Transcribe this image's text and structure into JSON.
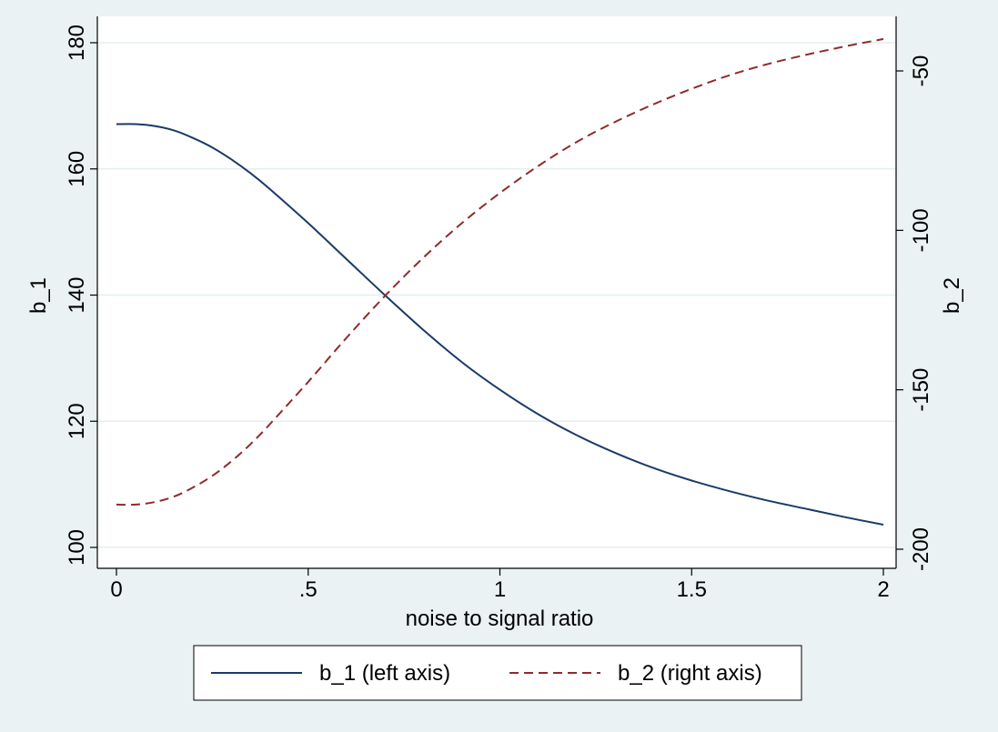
{
  "chart_data": {
    "type": "line",
    "xlabel": "noise to signal ratio",
    "ylabel_left": "b_1",
    "ylabel_right": "b_2",
    "x_ticks": [
      0,
      0.5,
      1,
      1.5,
      2
    ],
    "x_tick_labels": [
      "0",
      ".5",
      "1",
      "1.5",
      "2"
    ],
    "xlim": [
      0,
      2
    ],
    "y_left_ticks": [
      100,
      120,
      140,
      160,
      180
    ],
    "y_left_tick_labels": [
      "100",
      "120",
      "140",
      "160",
      "180"
    ],
    "y_left_lim": [
      100,
      180
    ],
    "y_right_ticks": [
      -200,
      -150,
      -100,
      -50
    ],
    "y_right_tick_labels": [
      "-200",
      "-150",
      "-100",
      "-50"
    ],
    "y_right_lim": [
      -200,
      -50
    ],
    "grid": true,
    "legend_position": "bottom",
    "x": [
      0,
      0.05,
      0.1,
      0.15,
      0.2,
      0.25,
      0.3,
      0.35,
      0.4,
      0.5,
      0.6,
      0.7,
      0.8,
      0.9,
      1.0,
      1.1,
      1.2,
      1.3,
      1.4,
      1.5,
      1.6,
      1.7,
      1.8,
      1.9,
      2.0
    ],
    "series": [
      {
        "name": "b_1 (left axis)",
        "axis": "left",
        "color": "#1a3a68",
        "style": "solid",
        "values": [
          167.1,
          167.1,
          166.8,
          166.1,
          164.9,
          163.4,
          161.5,
          159.3,
          156.8,
          151.4,
          145.7,
          140.0,
          134.5,
          129.4,
          125.0,
          121.1,
          117.8,
          115.0,
          112.6,
          110.6,
          108.9,
          107.4,
          106.1,
          104.8,
          103.6
        ]
      },
      {
        "name": "b_2 (right axis)",
        "axis": "right",
        "color": "#902a2a",
        "style": "dashed",
        "values": [
          -186.0,
          -186.0,
          -185.2,
          -183.5,
          -180.6,
          -177.0,
          -172.4,
          -167.0,
          -160.8,
          -147.5,
          -133.7,
          -120.6,
          -108.6,
          -97.8,
          -88.3,
          -79.8,
          -72.3,
          -66.0,
          -60.5,
          -55.6,
          -51.3,
          -47.8,
          -44.9,
          -42.3,
          -40.0
        ]
      }
    ]
  }
}
